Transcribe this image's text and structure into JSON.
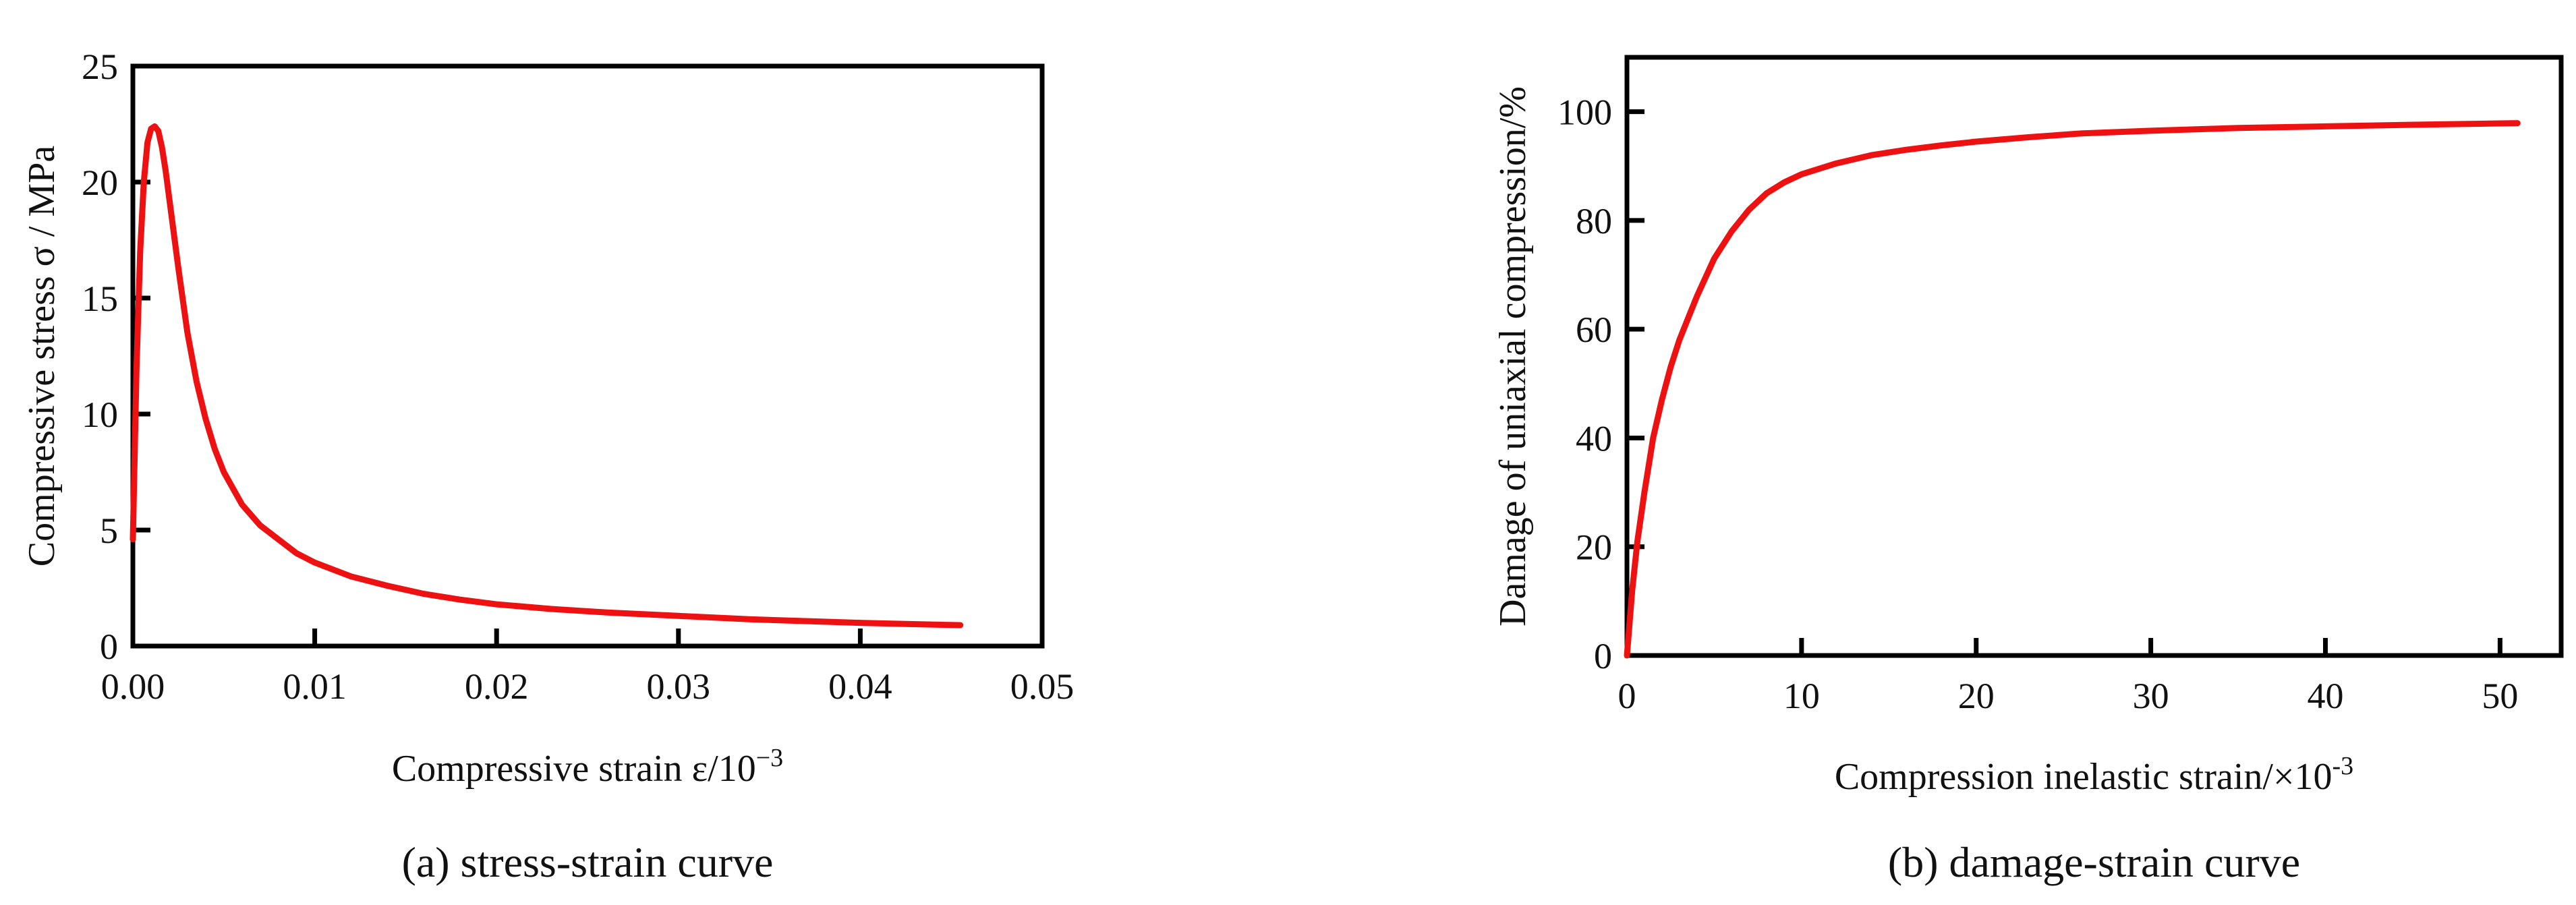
{
  "colors": {
    "curve": "#ee1111",
    "axis": "#000000",
    "text": "#111111",
    "background": "#ffffff"
  },
  "chart_data": [
    {
      "type": "line",
      "caption": "(a) stress-strain curve",
      "xlabel": "Compressive strain ε/10",
      "xlabel_sup": "−3",
      "ylabel": "Compressive stress σ / MPa",
      "xlim": [
        0,
        0.05
      ],
      "ylim": [
        0,
        25
      ],
      "x_ticks": [
        0,
        0.01,
        0.02,
        0.03,
        0.04,
        0.05
      ],
      "x_tick_labels": [
        "0.00",
        "0.01",
        "0.02",
        "0.03",
        "0.04",
        "0.05"
      ],
      "y_ticks": [
        0,
        5,
        10,
        15,
        20,
        25
      ],
      "y_tick_labels": [
        "0",
        "5",
        "10",
        "15",
        "20",
        "25"
      ],
      "grid": false,
      "series": [
        {
          "x": [
            0,
            0.0002,
            0.0004,
            0.0006,
            0.0008,
            0.001,
            0.0012,
            0.0014,
            0.0016,
            0.0018,
            0.002,
            0.0025,
            0.003,
            0.0035,
            0.004,
            0.0045,
            0.005,
            0.006,
            0.007,
            0.008,
            0.009,
            0.01,
            0.012,
            0.014,
            0.016,
            0.018,
            0.02,
            0.023,
            0.026,
            0.03,
            0.034,
            0.038,
            0.04,
            0.0425,
            0.0455
          ],
          "y": [
            4.6,
            12.0,
            17.0,
            20.0,
            21.7,
            22.3,
            22.4,
            22.2,
            21.5,
            20.5,
            19.3,
            16.3,
            13.5,
            11.4,
            9.8,
            8.5,
            7.5,
            6.1,
            5.2,
            4.6,
            4.0,
            3.6,
            3.0,
            2.6,
            2.25,
            2.0,
            1.8,
            1.6,
            1.45,
            1.3,
            1.15,
            1.05,
            1.0,
            0.95,
            0.9
          ]
        }
      ]
    },
    {
      "type": "line",
      "caption": "(b) damage-strain curve",
      "xlabel": "Compression inelastic strain/×10",
      "xlabel_sup": "-3",
      "ylabel": "Damage of uniaxial compression/%",
      "xlim": [
        0,
        53.5
      ],
      "ylim": [
        0,
        110
      ],
      "x_ticks": [
        0,
        10,
        20,
        30,
        40,
        50
      ],
      "x_tick_labels": [
        "0",
        "10",
        "20",
        "30",
        "40",
        "50"
      ],
      "y_ticks": [
        0,
        20,
        40,
        60,
        80,
        100
      ],
      "y_tick_labels": [
        "0",
        "20",
        "40",
        "60",
        "80",
        "100"
      ],
      "grid": false,
      "series": [
        {
          "x": [
            0,
            0.3,
            0.6,
            1,
            1.5,
            2,
            2.5,
            3,
            3.5,
            4,
            5,
            6,
            7,
            8,
            9,
            10,
            12,
            14,
            16,
            18,
            20,
            23,
            26,
            30,
            35,
            40,
            45,
            51
          ],
          "y": [
            0,
            12,
            21,
            30,
            40,
            47,
            53,
            58,
            62,
            66,
            73,
            78,
            82,
            85,
            87,
            88.5,
            90.5,
            92,
            93,
            93.8,
            94.5,
            95.3,
            96,
            96.5,
            97,
            97.3,
            97.6,
            97.9
          ]
        }
      ]
    }
  ]
}
